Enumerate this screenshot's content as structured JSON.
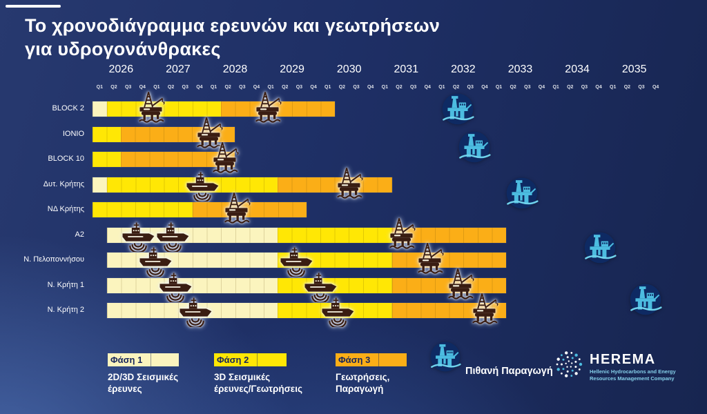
{
  "title_line1": "Το χρονοδιάγραμμα ερευνών και γεωτρήσεων",
  "title_line2": "για υδρογονάνθρακες",
  "branding": {
    "name": "HEREMA",
    "tagline_line1": "Hellenic Hydrocarbons and Energy",
    "tagline_line2": "Resources Management Company"
  },
  "colors": {
    "background_navy": "#1E2F65",
    "phase1": "#FBF4BE",
    "phase2": "#FFE705",
    "phase3": "#FBAE17",
    "icon_dark": "#3A1D12",
    "production_blue": "#4CBCE0",
    "production_wave": "#6FD2EC",
    "production_circle_bg": "#0E2A63",
    "tagline_teal": "#85CFE9"
  },
  "chart_data": {
    "type": "gantt",
    "title": "Το χρονοδιάγραμμα ερευνών και γεωτρήσεων για υδρογονάνθρακες",
    "years": [
      "2026",
      "2027",
      "2028",
      "2029",
      "2030",
      "2031",
      "2032",
      "2033",
      "2034",
      "2035"
    ],
    "quarter_labels": [
      "Q1",
      "Q2",
      "Q3",
      "Q4"
    ],
    "time_unit": "quarter index, 0 = Q1 2026, one unit per quarter through Q4 2035 (40 quarters)",
    "phases": [
      {
        "id": 1,
        "label": "Φάση 1",
        "color": "#FBF4BE",
        "desc": "2D/3D Σεισμικές\nέρευνες"
      },
      {
        "id": 2,
        "label": "Φάση 2",
        "color": "#FFE705",
        "desc": "3D Σεισμικές\nέρευνες/Γεωτρήσεις"
      },
      {
        "id": 3,
        "label": "Φάση 3",
        "color": "#FBAE17",
        "desc": "Γεωτρήσεις,\nΠαραγωγή"
      }
    ],
    "legend": {
      "possible_production_label": "Πιθανή Παραγωγή"
    },
    "rows": [
      {
        "label": "BLOCK 2",
        "segments": [
          {
            "phase": 1,
            "start": 0,
            "end": 1
          },
          {
            "phase": 2,
            "start": 1,
            "end": 9
          },
          {
            "phase": 3,
            "start": 9,
            "end": 17
          }
        ],
        "markers": [
          {
            "type": "rig",
            "at": 4.2
          },
          {
            "type": "rig",
            "at": 12.4
          }
        ]
      },
      {
        "label": "IONIO",
        "segments": [
          {
            "phase": 2,
            "start": 0,
            "end": 2
          },
          {
            "phase": 3,
            "start": 2,
            "end": 10
          }
        ],
        "markers": [
          {
            "type": "rig",
            "at": 8.3
          }
        ]
      },
      {
        "label": "BLOCK 10",
        "segments": [
          {
            "phase": 2,
            "start": 0,
            "end": 2
          },
          {
            "phase": 3,
            "start": 2,
            "end": 10
          }
        ],
        "markers": [
          {
            "type": "rig",
            "at": 9.4
          }
        ]
      },
      {
        "label": "Δυτ. Κρήτης",
        "segments": [
          {
            "phase": 1,
            "start": 0,
            "end": 1
          },
          {
            "phase": 2,
            "start": 1,
            "end": 13
          },
          {
            "phase": 3,
            "start": 13,
            "end": 21
          }
        ],
        "markers": [
          {
            "type": "ship",
            "at": 7.7
          },
          {
            "type": "rig",
            "at": 18.1
          }
        ]
      },
      {
        "label": "ΝΔ Κρήτης",
        "segments": [
          {
            "phase": 2,
            "start": 0,
            "end": 7
          },
          {
            "phase": 3,
            "start": 7,
            "end": 15
          }
        ],
        "markers": [
          {
            "type": "rig",
            "at": 10.2
          }
        ]
      },
      {
        "label": "A2",
        "segments": [
          {
            "phase": 1,
            "start": 1,
            "end": 13
          },
          {
            "phase": 2,
            "start": 13,
            "end": 21
          },
          {
            "phase": 3,
            "start": 21,
            "end": 29
          }
        ],
        "markers": [
          {
            "type": "ship",
            "at": 3.2
          },
          {
            "type": "ship",
            "at": 5.6
          },
          {
            "type": "rig",
            "at": 21.8
          }
        ]
      },
      {
        "label": "Ν. Πελοποννήσου",
        "segments": [
          {
            "phase": 1,
            "start": 1,
            "end": 13
          },
          {
            "phase": 2,
            "start": 13,
            "end": 21
          },
          {
            "phase": 3,
            "start": 21,
            "end": 29
          }
        ],
        "markers": [
          {
            "type": "ship",
            "at": 4.4
          },
          {
            "type": "ship",
            "at": 14.3
          },
          {
            "type": "rig",
            "at": 23.8
          }
        ]
      },
      {
        "label": "Ν. Κρήτη 1",
        "segments": [
          {
            "phase": 1,
            "start": 1,
            "end": 13
          },
          {
            "phase": 2,
            "start": 13,
            "end": 21
          },
          {
            "phase": 3,
            "start": 21,
            "end": 29
          }
        ],
        "markers": [
          {
            "type": "ship",
            "at": 5.8
          },
          {
            "type": "ship",
            "at": 16.0
          },
          {
            "type": "rig",
            "at": 25.9
          }
        ]
      },
      {
        "label": "Ν. Κρήτη 2",
        "segments": [
          {
            "phase": 1,
            "start": 1,
            "end": 13
          },
          {
            "phase": 2,
            "start": 13,
            "end": 21
          },
          {
            "phase": 3,
            "start": 21,
            "end": 29
          }
        ],
        "markers": [
          {
            "type": "ship",
            "at": 7.2
          },
          {
            "type": "ship",
            "at": 17.2
          },
          {
            "type": "rig",
            "at": 27.6
          }
        ]
      }
    ],
    "production_icons": [
      {
        "row": 0,
        "at": 25.6
      },
      {
        "row": 1.5,
        "at": 26.8
      },
      {
        "row": 3.35,
        "at": 30.1
      },
      {
        "row": 5.5,
        "at": 35.6
      },
      {
        "row": 7.55,
        "at": 38.8
      }
    ]
  }
}
